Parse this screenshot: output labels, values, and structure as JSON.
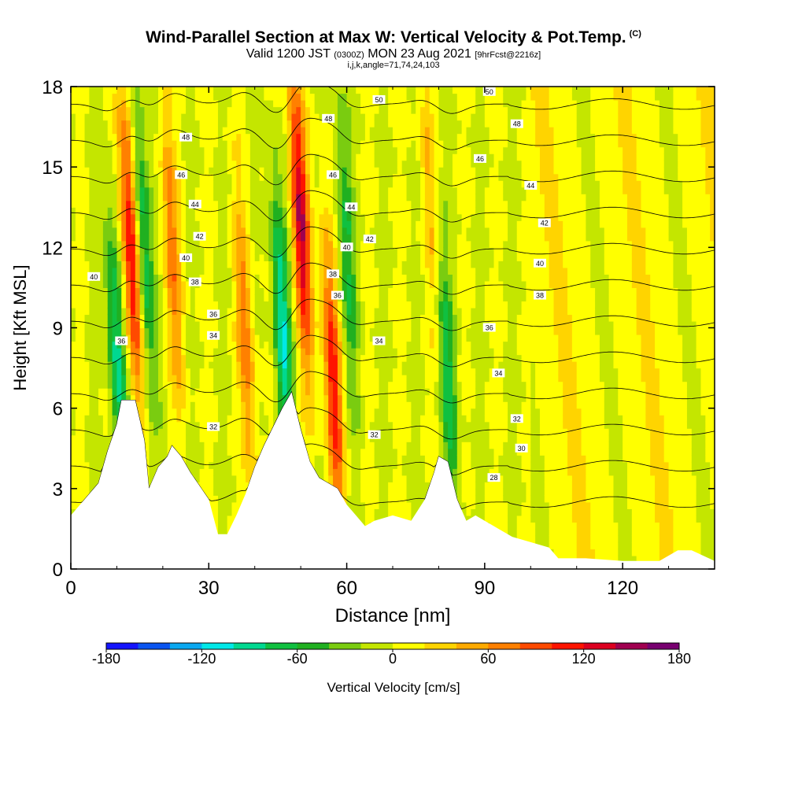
{
  "header": {
    "title": "Wind-Parallel Section at Max W: Vertical Velocity & Pot.Temp.",
    "copyright": "(C)",
    "valid_prefix": "Valid 1200 JST",
    "valid_utc": "(0300Z)",
    "valid_date": "MON 23 Aug 2021",
    "forecast": "[9hrFcst@2216z]",
    "coords": "i,j,k,angle=71,74,24,103"
  },
  "chart_data": {
    "type": "heatmap",
    "xlabel": "Distance [nm]",
    "ylabel": "Height [Kft MSL]",
    "xlim": [
      0,
      140
    ],
    "ylim": [
      0,
      18
    ],
    "x_ticks": [
      0,
      30,
      60,
      90,
      120
    ],
    "y_ticks": [
      0,
      3,
      6,
      9,
      12,
      15,
      18
    ],
    "terrain": [
      [
        0,
        2.0
      ],
      [
        3,
        2.6
      ],
      [
        6,
        3.2
      ],
      [
        8,
        4.4
      ],
      [
        10,
        5.4
      ],
      [
        11,
        6.3
      ],
      [
        14,
        6.3
      ],
      [
        16,
        4.8
      ],
      [
        17,
        3.0
      ],
      [
        19,
        3.8
      ],
      [
        21,
        4.2
      ],
      [
        22,
        4.6
      ],
      [
        24,
        4.2
      ],
      [
        26,
        3.6
      ],
      [
        28,
        3.1
      ],
      [
        30,
        2.6
      ],
      [
        32,
        1.3
      ],
      [
        34,
        1.3
      ],
      [
        36,
        2.0
      ],
      [
        38,
        2.8
      ],
      [
        40,
        3.8
      ],
      [
        42,
        4.6
      ],
      [
        44,
        5.3
      ],
      [
        46,
        6.0
      ],
      [
        48,
        6.6
      ],
      [
        50,
        5.2
      ],
      [
        52,
        4.0
      ],
      [
        54,
        3.4
      ],
      [
        56,
        3.2
      ],
      [
        58,
        3.0
      ],
      [
        60,
        2.4
      ],
      [
        62,
        2.0
      ],
      [
        64,
        1.6
      ],
      [
        66,
        1.8
      ],
      [
        70,
        2.0
      ],
      [
        74,
        1.8
      ],
      [
        77,
        2.6
      ],
      [
        79,
        3.6
      ],
      [
        80,
        4.2
      ],
      [
        82,
        4.0
      ],
      [
        84,
        2.6
      ],
      [
        86,
        1.8
      ],
      [
        88,
        2.0
      ],
      [
        90,
        1.8
      ],
      [
        92,
        1.6
      ],
      [
        96,
        1.2
      ],
      [
        100,
        1.0
      ],
      [
        104,
        0.8
      ],
      [
        106,
        0.4
      ],
      [
        112,
        0.4
      ],
      [
        120,
        0.3
      ],
      [
        128,
        0.3
      ],
      [
        132,
        0.7
      ],
      [
        135,
        0.7
      ],
      [
        140,
        0.3
      ]
    ],
    "colorbar": {
      "title": "Vertical Velocity [cm/s]",
      "min": -180,
      "max": 180,
      "tick_labels": [
        "-180",
        "-120",
        "-60",
        "0",
        "60",
        "120",
        "180"
      ],
      "colors": [
        "#1414ff",
        "#0a55f0",
        "#0aa8f0",
        "#00e8e8",
        "#00d890",
        "#10c040",
        "#20b020",
        "#7acc10",
        "#c4e600",
        "#ffff00",
        "#ffd400",
        "#ffaa00",
        "#ff8000",
        "#ff4a00",
        "#ff1400",
        "#dc0020",
        "#a00050",
        "#780070"
      ]
    },
    "updraft_cores": [
      {
        "x": 13,
        "z": 12,
        "w": 130
      },
      {
        "x": 22,
        "z": 12,
        "w": 70
      },
      {
        "x": 50,
        "z": 13,
        "w": 140
      },
      {
        "x": 57,
        "z": 7,
        "w": 110
      },
      {
        "x": 38,
        "z": 8.5,
        "w": 70
      },
      {
        "x": 78,
        "z": 14,
        "w": 40
      }
    ],
    "downdraft_cores": [
      {
        "x": 10,
        "z": 8,
        "w": -90
      },
      {
        "x": 16,
        "z": 12,
        "w": -80
      },
      {
        "x": 46,
        "z": 9,
        "w": -100
      },
      {
        "x": 60,
        "z": 12,
        "w": -60
      },
      {
        "x": 82,
        "z": 7,
        "w": -70
      }
    ],
    "isentropes": {
      "unit": "C",
      "levels": [
        28,
        30,
        32,
        34,
        36,
        38,
        40,
        42,
        44,
        46,
        48,
        50
      ],
      "labels": [
        {
          "x": 5,
          "z": 10.9,
          "text": "40"
        },
        {
          "x": 11,
          "z": 8.5,
          "text": "36"
        },
        {
          "x": 31,
          "z": 5.3,
          "text": "32"
        },
        {
          "x": 31,
          "z": 8.7,
          "text": "34"
        },
        {
          "x": 31,
          "z": 9.5,
          "text": "36"
        },
        {
          "x": 27,
          "z": 10.7,
          "text": "38"
        },
        {
          "x": 25,
          "z": 11.6,
          "text": "40"
        },
        {
          "x": 28,
          "z": 12.4,
          "text": "42"
        },
        {
          "x": 27,
          "z": 13.6,
          "text": "44"
        },
        {
          "x": 24,
          "z": 14.7,
          "text": "46"
        },
        {
          "x": 25,
          "z": 16.1,
          "text": "48"
        },
        {
          "x": 67,
          "z": 8.5,
          "text": "34"
        },
        {
          "x": 66,
          "z": 5.0,
          "text": "32"
        },
        {
          "x": 58,
          "z": 10.2,
          "text": "36"
        },
        {
          "x": 57,
          "z": 11.0,
          "text": "38"
        },
        {
          "x": 60,
          "z": 12.0,
          "text": "40"
        },
        {
          "x": 65,
          "z": 12.3,
          "text": "42"
        },
        {
          "x": 61,
          "z": 13.5,
          "text": "44"
        },
        {
          "x": 57,
          "z": 14.7,
          "text": "46"
        },
        {
          "x": 56,
          "z": 16.8,
          "text": "48"
        },
        {
          "x": 67,
          "z": 17.5,
          "text": "50"
        },
        {
          "x": 91,
          "z": 9.0,
          "text": "36"
        },
        {
          "x": 93,
          "z": 7.3,
          "text": "34"
        },
        {
          "x": 97,
          "z": 5.6,
          "text": "32"
        },
        {
          "x": 98,
          "z": 4.5,
          "text": "30"
        },
        {
          "x": 92,
          "z": 3.4,
          "text": "28"
        },
        {
          "x": 102,
          "z": 10.2,
          "text": "38"
        },
        {
          "x": 102,
          "z": 11.4,
          "text": "40"
        },
        {
          "x": 103,
          "z": 12.9,
          "text": "42"
        },
        {
          "x": 100,
          "z": 14.3,
          "text": "44"
        },
        {
          "x": 89,
          "z": 15.3,
          "text": "46"
        },
        {
          "x": 97,
          "z": 16.6,
          "text": "48"
        },
        {
          "x": 91,
          "z": 17.8,
          "text": "50"
        }
      ]
    }
  }
}
